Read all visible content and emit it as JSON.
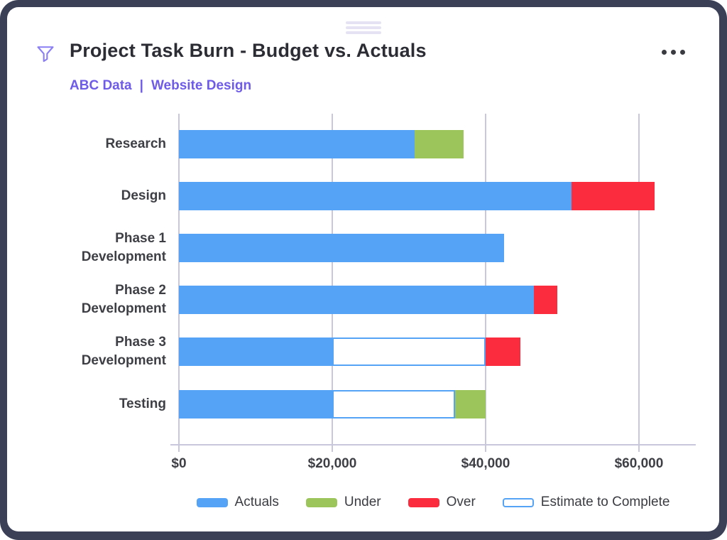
{
  "header": {
    "title": "Project Task Burn - Budget vs. Actuals",
    "links": {
      "first": "ABC Data",
      "separator": "|",
      "second": "Website Design"
    }
  },
  "colors": {
    "frame": "#3b4057",
    "accent": "#6e5be8",
    "filter_icon": "#8a7ef4",
    "gridline": "#c9c7db",
    "actuals": "#55a3f6",
    "under": "#9cc55c",
    "over": "#fb2c3e",
    "etc_fill": "#ffffff",
    "etc_border": "#55a3f6"
  },
  "chart_data": {
    "type": "bar",
    "orientation": "horizontal",
    "title": "Project Task Burn - Budget vs. Actuals",
    "categories": [
      "Research",
      "Design",
      "Phase 1 Development",
      "Phase 2 Development",
      "Phase 3 Development",
      "Testing"
    ],
    "series": [
      {
        "name": "Actuals",
        "key": "actuals",
        "values": [
          30700,
          51200,
          42400,
          46300,
          20000,
          20000
        ]
      },
      {
        "name": "Estimate to Complete",
        "key": "etc",
        "values": [
          0,
          0,
          0,
          0,
          20000,
          16000
        ]
      },
      {
        "name": "Under",
        "key": "under",
        "values": [
          6400,
          0,
          0,
          0,
          0,
          4000
        ]
      },
      {
        "name": "Over",
        "key": "over",
        "values": [
          0,
          10800,
          0,
          3100,
          4500,
          0
        ]
      }
    ],
    "totals_per_task": [
      37100,
      62000,
      42400,
      49400,
      44500,
      40000
    ],
    "x_ticks": [
      {
        "value": 0,
        "label": "$0"
      },
      {
        "value": 20000,
        "label": "$20,000"
      },
      {
        "value": 40000,
        "label": "$40,000"
      },
      {
        "value": 60000,
        "label": "$60,000"
      }
    ],
    "xlim": [
      0,
      66300
    ],
    "grid": true,
    "legend_position": "bottom",
    "legend": [
      {
        "label": "Actuals",
        "key": "actuals",
        "swatch": "fill"
      },
      {
        "label": "Under",
        "key": "under",
        "swatch": "fill"
      },
      {
        "label": "Over",
        "key": "over",
        "swatch": "fill"
      },
      {
        "label": "Estimate to Complete",
        "key": "etc",
        "swatch": "outline"
      }
    ]
  }
}
